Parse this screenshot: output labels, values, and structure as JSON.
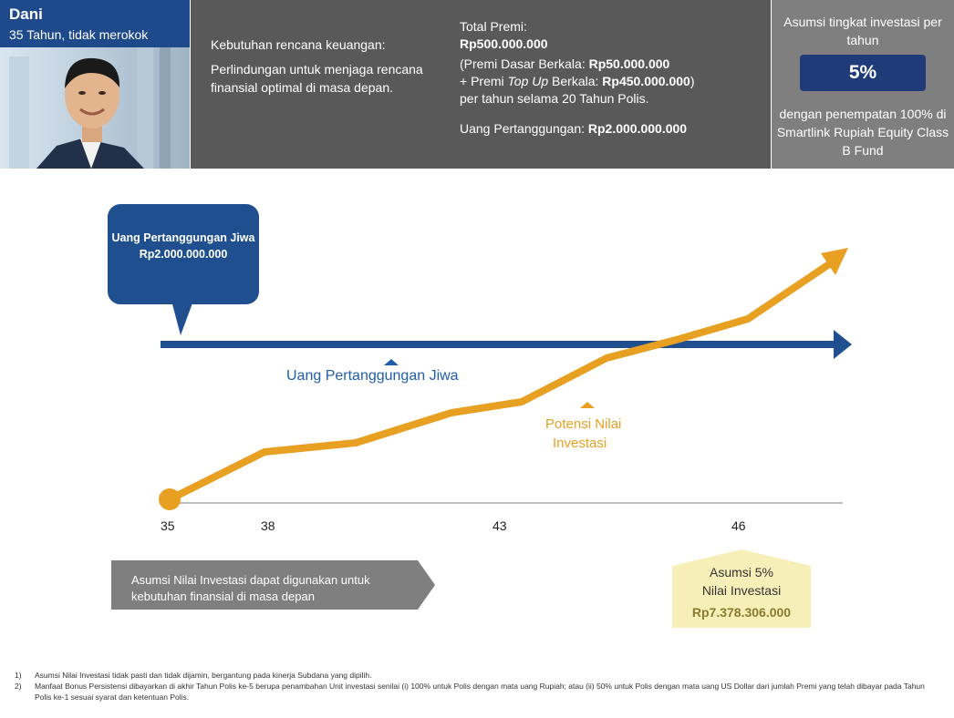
{
  "profile": {
    "name": "Dani",
    "subtitle": "35 Tahun, tidak merokok"
  },
  "needs": {
    "title": "Kebutuhan rencana keuangan:",
    "description": "Perlindungan untuk menjaga rencana finansial optimal di masa depan."
  },
  "premium": {
    "label": "Total Premi:",
    "total": "Rp500.000.000",
    "basic_prefix": "(Premi Dasar Berkala: ",
    "basic_value": "Rp50.000.000",
    "topup_prefix": "+ Premi ",
    "topup_italic": "Top Up",
    "topup_mid": " Berkala: ",
    "topup_value": "Rp450.000.000",
    "topup_suffix": ")",
    "period": "per tahun selama 20 Tahun Polis.",
    "sum_assured_label": "Uang Pertanggungan: ",
    "sum_assured_value": "Rp2.000.000.000"
  },
  "assumption": {
    "title": "Asumsi tingkat investasi per tahun",
    "rate": "5%",
    "fund": "dengan penempatan 100% di Smartlink Rupiah Equity Class B Fund"
  },
  "diagram": {
    "ins_callout_line1": "Uang  Pertanggungan Jiwa",
    "ins_callout_value": "Rp2.000.000.000",
    "ins_label": "Uang Pertanggungan  Jiwa",
    "inv_label_line1": "Potensi Nilai",
    "inv_label_line2": "Investasi",
    "ticks": [
      "35",
      "38",
      "43",
      "46"
    ],
    "usage_note": "Asumsi  Nilai  Investasi  dapat  digunakan untuk kebutuhan finansial di masa depan",
    "result_line1": "Asumsi 5%",
    "result_line2": "Nilai Investasi",
    "result_value": "Rp7.378.306.000",
    "colors": {
      "insurance": "#1f4f8e",
      "investment": "#e8a023",
      "result_bg": "#f7efb8",
      "usage_bg": "#7f7f7f"
    }
  },
  "notes": [
    {
      "num": "1)",
      "text": "Asumsi Nilai Investasi tidak pasti dan tidak dijamin, bergantung pada kinerja Subdana yang dipilih."
    },
    {
      "num": "2)",
      "text": "Manfaat Bonus Persistensi dibayarkan di akhir Tahun Polis ke-5 berupa penambahan Unit investasi senilai (i) 100% untuk Polis dengan mata uang Rupiah; atau (ii) 50% untuk Polis dengan mata uang US Dollar dari jumlah Premi yang telah dibayar pada Tahun Polis ke-1 sesuai syarat dan ketentuan Polis."
    }
  ]
}
